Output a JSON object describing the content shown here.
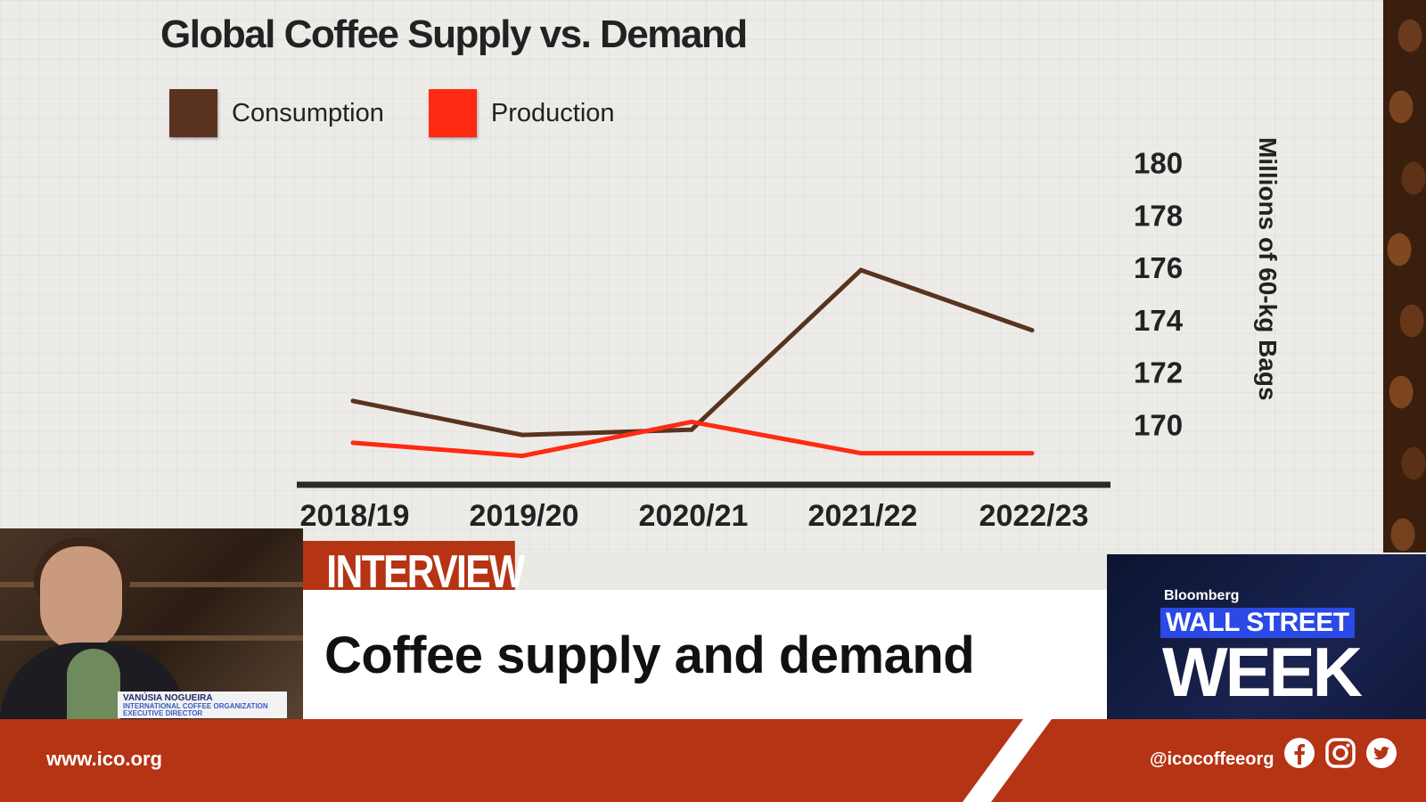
{
  "chart_data": {
    "type": "line",
    "title": "Global Coffee Supply vs. Demand",
    "categories": [
      "2018/19",
      "2019/20",
      "2020/21",
      "2021/22",
      "2022/23"
    ],
    "series": [
      {
        "name": "Consumption",
        "color": "#5a3320",
        "values": [
          170.9,
          169.6,
          169.8,
          175.9,
          173.6
        ]
      },
      {
        "name": "Production",
        "color": "#ff2a12",
        "values": [
          169.3,
          168.8,
          170.1,
          168.9,
          168.9
        ]
      }
    ],
    "y_ticks": [
      180,
      178,
      176,
      174,
      172,
      170
    ],
    "ylim": [
      167.9,
      180.5
    ],
    "ylabel": "Millions of 60-kg Bags",
    "xlabel": "",
    "legend_position": "top-left",
    "grid": true
  },
  "lower_third": {
    "tag": "INTERVIEW",
    "headline": "Coffee supply and demand",
    "person_name": "VANÚSIA NOGUEIRA",
    "person_title_1": "INTERNATIONAL COFFEE ORGANIZATION",
    "person_title_2": "EXECUTIVE DIRECTOR"
  },
  "show": {
    "brand": "Bloomberg",
    "line1": "WALL STREET",
    "line2": "WEEK"
  },
  "footer": {
    "website": "www.ico.org",
    "handle": "@icocoffeeorg",
    "social_icons": [
      "facebook-icon",
      "instagram-icon",
      "twitter-icon"
    ]
  },
  "colors": {
    "accent": "#b53414",
    "consumption": "#5a3320",
    "production": "#ff2a12"
  }
}
